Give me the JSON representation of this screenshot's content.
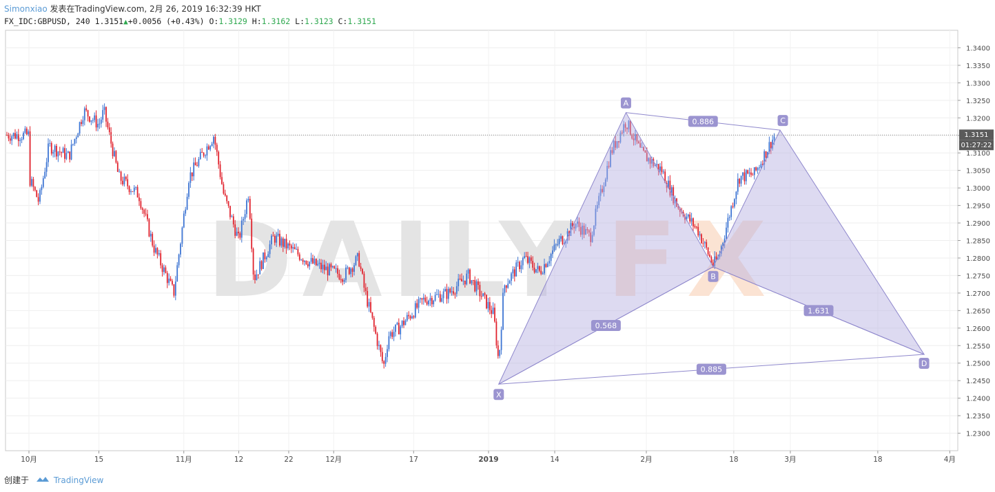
{
  "header": {
    "author": "Simonxiao",
    "published_on": "发表在TradingView.com, 2月 26, 2019 16:32:39 HKT",
    "symbol": "FX_IDC:GBPUSD, 240",
    "last": "1.3151",
    "change": "+0.0056 (+0.43%)",
    "open_label": "O:",
    "open": "1.3129",
    "high_label": "H:",
    "high": "1.3162",
    "low_label": "L:",
    "low": "1.3123",
    "close_label": "C:",
    "close": "1.3151"
  },
  "footer": {
    "created_with": "创建于",
    "brand": "TradingView"
  },
  "colors": {
    "up": "#3d74d3",
    "down": "#e0232e",
    "pattern_fill": "#b3aee0",
    "pattern_line": "#8e87cc",
    "label_bg": "#9b94d0",
    "watermark": "#e4e4e4",
    "watermark_accent": "#fbe3d3"
  },
  "watermark": {
    "text_a": "DAILY",
    "text_b": "FX"
  },
  "chart_data": {
    "type": "candlestick",
    "title": "",
    "ylim": [
      1.225,
      1.345
    ],
    "y_ticks": [
      "1.3400",
      "1.3350",
      "1.3300",
      "1.3250",
      "1.3200",
      "1.3150",
      "1.3100",
      "1.3050",
      "1.3000",
      "1.2950",
      "1.2900",
      "1.2850",
      "1.2800",
      "1.2750",
      "1.2700",
      "1.2650",
      "1.2600",
      "1.2550",
      "1.2500",
      "1.2450",
      "1.2400",
      "1.2350",
      "1.2300"
    ],
    "x_ticks": [
      "10月",
      "15",
      "11月",
      "12",
      "22",
      "12月",
      "17",
      "2019",
      "14",
      "2月",
      "18",
      "3月",
      "18",
      "4月"
    ],
    "current_price": {
      "value": 1.3151,
      "label": "1.3151",
      "countdown": "01:27:22"
    },
    "price_path": [
      {
        "date": "2018-10-01",
        "close": 1.303
      },
      {
        "date": "2018-10-03",
        "close": 1.296
      },
      {
        "date": "2018-10-05",
        "close": 1.312
      },
      {
        "date": "2018-10-09",
        "close": 1.309
      },
      {
        "date": "2018-10-12",
        "close": 1.322
      },
      {
        "date": "2018-10-15",
        "close": 1.318
      },
      {
        "date": "2018-10-16",
        "close": 1.322
      },
      {
        "date": "2018-10-19",
        "close": 1.303
      },
      {
        "date": "2018-10-23",
        "close": 1.298
      },
      {
        "date": "2018-10-26",
        "close": 1.283
      },
      {
        "date": "2018-10-30",
        "close": 1.27
      },
      {
        "date": "2018-11-02",
        "close": 1.303
      },
      {
        "date": "2018-11-07",
        "close": 1.315
      },
      {
        "date": "2018-11-09",
        "close": 1.298
      },
      {
        "date": "2018-11-12",
        "close": 1.285
      },
      {
        "date": "2018-11-14",
        "close": 1.299
      },
      {
        "date": "2018-11-15",
        "close": 1.274
      },
      {
        "date": "2018-11-19",
        "close": 1.286
      },
      {
        "date": "2018-11-22",
        "close": 1.283
      },
      {
        "date": "2018-11-26",
        "close": 1.279
      },
      {
        "date": "2018-11-29",
        "close": 1.277
      },
      {
        "date": "2018-12-03",
        "close": 1.275
      },
      {
        "date": "2018-12-06",
        "close": 1.28
      },
      {
        "date": "2018-12-07",
        "close": 1.272
      },
      {
        "date": "2018-12-11",
        "close": 1.249
      },
      {
        "date": "2018-12-12",
        "close": 1.258
      },
      {
        "date": "2018-12-14",
        "close": 1.26
      },
      {
        "date": "2018-12-19",
        "close": 1.268
      },
      {
        "date": "2018-12-24",
        "close": 1.27
      },
      {
        "date": "2018-12-28",
        "close": 1.275
      },
      {
        "date": "2019-01-02",
        "close": 1.264
      },
      {
        "date": "2019-01-03",
        "close": 1.25
      },
      {
        "date": "2019-01-04",
        "close": 1.272
      },
      {
        "date": "2019-01-08",
        "close": 1.28
      },
      {
        "date": "2019-01-11",
        "close": 1.276
      },
      {
        "date": "2019-01-15",
        "close": 1.285
      },
      {
        "date": "2019-01-16",
        "close": 1.286
      },
      {
        "date": "2019-01-18",
        "close": 1.29
      },
      {
        "date": "2019-01-21",
        "close": 1.286
      },
      {
        "date": "2019-01-25",
        "close": 1.31
      },
      {
        "date": "2019-01-28",
        "close": 1.319
      },
      {
        "date": "2019-01-31",
        "close": 1.31
      },
      {
        "date": "2019-02-04",
        "close": 1.305
      },
      {
        "date": "2019-02-07",
        "close": 1.295
      },
      {
        "date": "2019-02-11",
        "close": 1.288
      },
      {
        "date": "2019-02-14",
        "close": 1.278
      },
      {
        "date": "2019-02-15",
        "close": 1.28
      },
      {
        "date": "2019-02-19",
        "close": 1.303
      },
      {
        "date": "2019-02-22",
        "close": 1.304
      },
      {
        "date": "2019-02-26",
        "close": 1.3151
      }
    ],
    "harmonic_pattern": {
      "points": [
        {
          "label": "X",
          "date": "2019-01-03",
          "price": 1.244
        },
        {
          "label": "A",
          "date": "2019-01-28",
          "price": 1.3215
        },
        {
          "label": "B",
          "date": "2019-02-14",
          "price": 1.2775
        },
        {
          "label": "C",
          "date": "2019-02-27",
          "price": 1.3165
        },
        {
          "label": "D",
          "date": "2019-03-27",
          "price": 1.2525
        }
      ],
      "ratios": [
        {
          "between": "X-B",
          "value": "0.568"
        },
        {
          "between": "A-C",
          "value": "0.886"
        },
        {
          "between": "B-D",
          "value": "1.631"
        },
        {
          "between": "X-D",
          "value": "0.885"
        }
      ]
    }
  }
}
